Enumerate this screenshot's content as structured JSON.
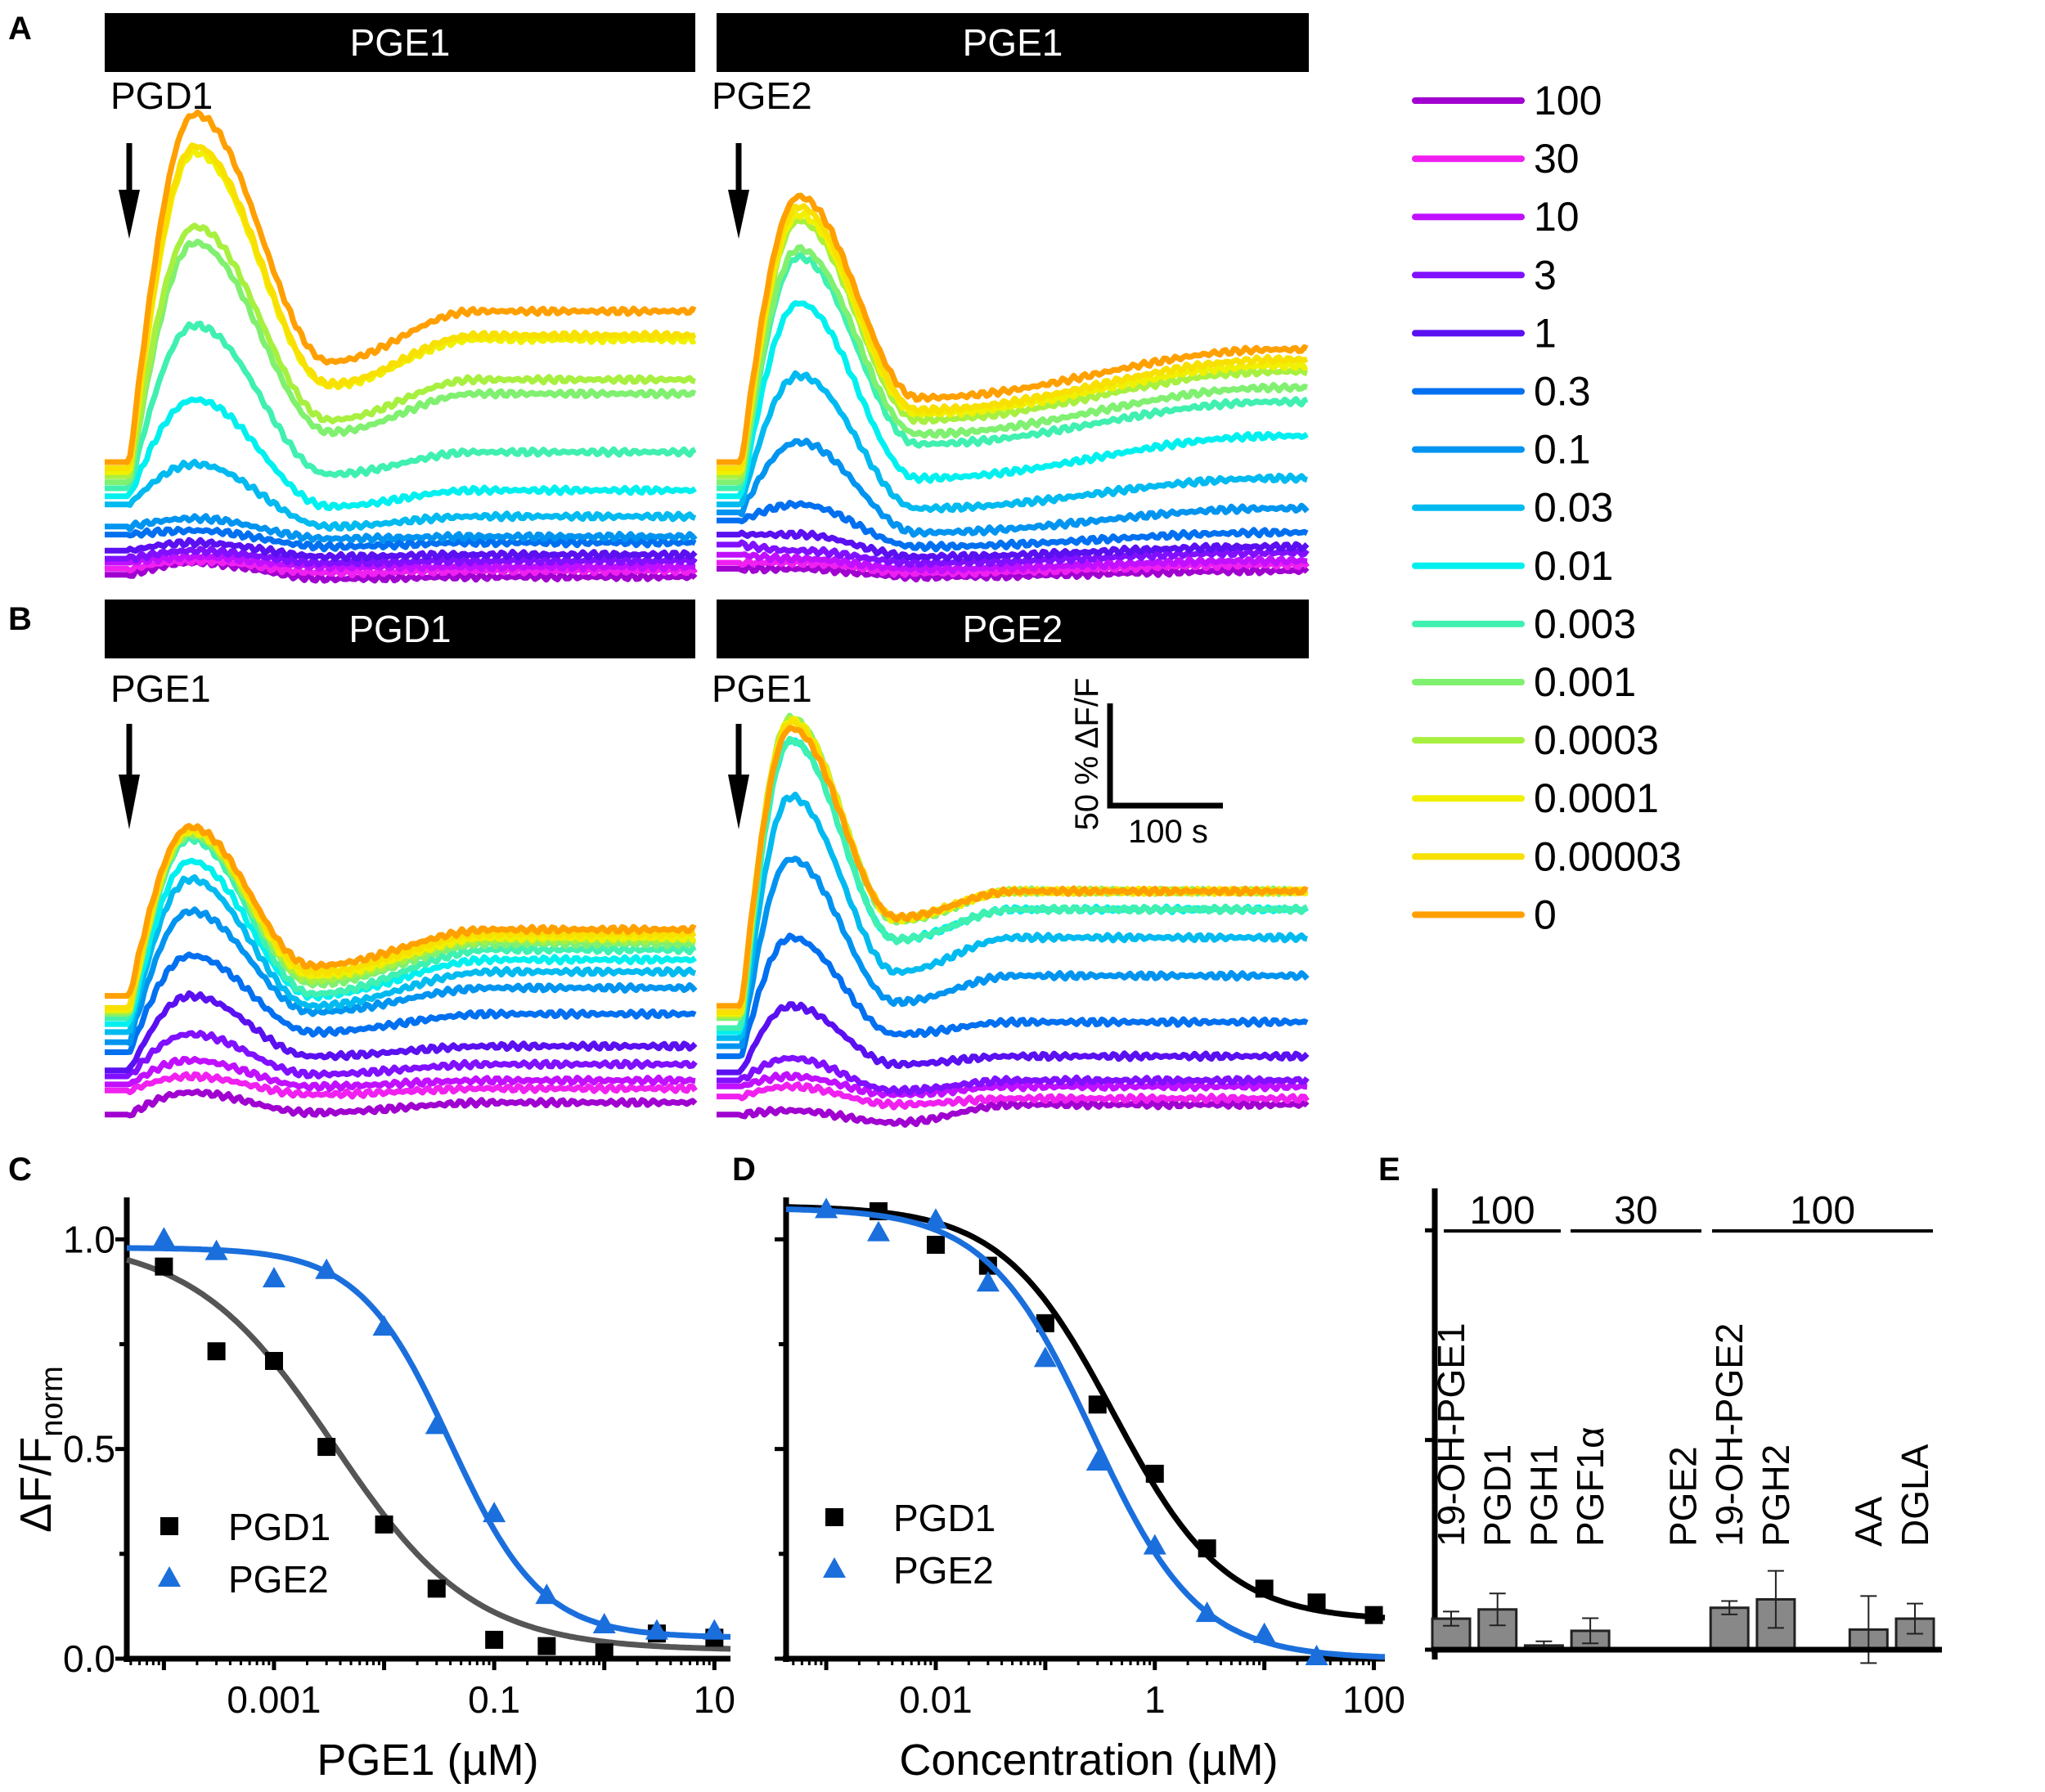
{
  "panel_labels": [
    "A",
    "B",
    "C",
    "D",
    "E"
  ],
  "traces": {
    "time_unit": "s",
    "value_unit": "% ΔF/F",
    "concentrations": [
      "100",
      "30",
      "10",
      "3",
      "1",
      "0.3",
      "0.1",
      "0.03",
      "0.01",
      "0.003",
      "0.001",
      "0.0003",
      "0.0001",
      "0.00003",
      "0"
    ],
    "colors": [
      "#a000d0",
      "#f020f0",
      "#c010ff",
      "#8010ff",
      "#5a10f0",
      "#0070f0",
      "#0094f0",
      "#00baf0",
      "#00f0f0",
      "#40f0b0",
      "#80f070",
      "#a8f040",
      "#f0f000",
      "#f8e000",
      "#ffa000"
    ],
    "panels": [
      {
        "bar_label": "PGE1",
        "agonist_label": "PGD1",
        "base": [
          7,
          10,
          13,
          15,
          19,
          27,
          31,
          42,
          46,
          50,
          53,
          56,
          58,
          60,
          63
        ],
        "peak": [
          13,
          14,
          16,
          19,
          23,
          29,
          35,
          62,
          94,
          131,
          172,
          180,
          217,
          220,
          236
        ],
        "trough": [
          5,
          8,
          11,
          13,
          16,
          21,
          25,
          31,
          41,
          57,
          78,
          84,
          101,
          102,
          113
        ],
        "plateau": [
          6,
          9,
          11,
          14,
          17,
          23,
          26,
          36,
          49,
          68,
          97,
          104,
          124,
          126,
          138
        ]
      },
      {
        "bar_label": "PGE1",
        "agonist_label": "PGE2",
        "base": [
          10,
          13,
          17,
          22,
          27,
          34,
          38,
          42,
          46,
          50,
          53,
          56,
          58,
          60,
          63
        ],
        "peak": [
          10,
          13,
          15,
          19,
          27,
          42,
          73,
          106,
          142,
          165,
          169,
          183,
          186,
          190,
          195
        ],
        "trough": [
          6,
          8,
          10,
          13,
          16,
          21,
          28,
          40,
          55,
          72,
          77,
          84,
          87,
          89,
          95
        ],
        "plateau": [
          9,
          12,
          14,
          18,
          21,
          28,
          40,
          55,
          76,
          93,
          100,
          108,
          111,
          114,
          119
        ]
      },
      {
        "bar_label": "PGD1",
        "agonist_label": "PGE1",
        "base": [
          7,
          19,
          22,
          26,
          29,
          38,
          43,
          48,
          52,
          55,
          57,
          58,
          59,
          60,
          66
        ],
        "peak": [
          18,
          26,
          34,
          47,
          66,
          86,
          108,
          124,
          133,
          144,
          146,
          147,
          148,
          149,
          150
        ],
        "trough": [
          8,
          17,
          21,
          27,
          36,
          48,
          58,
          61,
          66,
          67,
          72,
          74,
          76,
          78,
          81
        ],
        "plateau": [
          13,
          20,
          24,
          32,
          41,
          57,
          70,
          78,
          84,
          89,
          92,
          94,
          95,
          97,
          99
        ]
      },
      {
        "bar_label": "PGE2",
        "agonist_label": "PGE1",
        "base": [
          7,
          16,
          21,
          24,
          28,
          36,
          41,
          45,
          48,
          50,
          55,
          56,
          57,
          58,
          61
        ],
        "peak": [
          9,
          21,
          26,
          35,
          61,
          95,
          134,
          165,
          193,
          193,
          204,
          204,
          203,
          202,
          199
        ],
        "trough": [
          3,
          12,
          17,
          19,
          32,
          47,
          63,
          78,
          94,
          94,
          103,
          104,
          104,
          105,
          105
        ],
        "plateau": [
          12,
          15,
          21,
          24,
          36,
          53,
          76,
          95,
          109,
          109,
          118,
          118,
          118,
          118,
          118
        ]
      }
    ]
  },
  "scale_bar": {
    "vertical_label": "50 % ΔF/F",
    "horizontal_label": "100 s",
    "vertical_value": 50,
    "horizontal_value": 100
  },
  "chart_data": [
    {
      "type": "scatter",
      "xlabel": "PGE1 (µM)",
      "ylabel": "ΔF/F",
      "ylabel_sub": "norm",
      "xscale": "log",
      "xlim": [
        4.6e-05,
        14
      ],
      "ylim": [
        0,
        1.1
      ],
      "xticklabels": [
        "0.001",
        "0.1",
        "10"
      ],
      "yticklabels": [
        "0.0",
        "0.5",
        "1.0"
      ],
      "legend": "lower-left",
      "series": [
        {
          "name": "PGD1",
          "marker": "square",
          "color": "#000000",
          "curve_color": "#555555",
          "x": [
            0.0001,
            0.0003,
            0.001,
            0.003,
            0.01,
            0.03,
            0.1,
            0.3,
            1,
            3,
            10
          ],
          "values": [
            0.935,
            0.733,
            0.71,
            0.505,
            0.32,
            0.167,
            0.045,
            0.03,
            0.015,
            0.06,
            0.05
          ],
          "fit": {
            "top": 1.0,
            "bottom": 0.02,
            "ic50": 0.0035,
            "hill": 0.68
          }
        },
        {
          "name": "PGE2",
          "marker": "triangle",
          "color": "#1a6fdc",
          "curve_color": "#1a6fdc",
          "x": [
            0.0001,
            0.0003,
            0.001,
            0.003,
            0.01,
            0.03,
            0.1,
            0.3,
            1,
            3,
            10
          ],
          "values": [
            1.0,
            0.97,
            0.905,
            0.925,
            0.79,
            0.555,
            0.345,
            0.15,
            0.08,
            0.065,
            0.065
          ],
          "fit": {
            "top": 0.98,
            "bottom": 0.05,
            "ic50": 0.04,
            "hill": 1.05
          }
        }
      ]
    },
    {
      "type": "scatter",
      "xlabel": "Concentration (µM)",
      "xscale": "log",
      "xlim": [
        0.00043,
        126
      ],
      "ylim": [
        0,
        1.1
      ],
      "xticklabels": [
        "0.01",
        "1",
        "100"
      ],
      "legend": "lower-left",
      "series": [
        {
          "name": "PGD1",
          "marker": "square",
          "color": "#000000",
          "curve_color": "#000000",
          "x": [
            0.003,
            0.01,
            0.03,
            0.1,
            0.3,
            1,
            3,
            10,
            30,
            100
          ],
          "values": [
            1.067,
            0.987,
            0.937,
            0.8,
            0.606,
            0.441,
            0.263,
            0.167,
            0.134,
            0.104
          ],
          "fit": {
            "top": 1.08,
            "bottom": 0.09,
            "ic50": 0.42,
            "hill": 0.85
          }
        },
        {
          "name": "PGE2",
          "marker": "triangle",
          "color": "#1a6fdc",
          "curve_color": "#1a6fdc",
          "x": [
            0.001,
            0.003,
            0.01,
            0.03,
            0.1,
            0.3,
            1,
            3,
            10,
            30
          ],
          "values": [
            1.07,
            1.015,
            1.045,
            0.895,
            0.715,
            0.468,
            0.268,
            0.107,
            0.057,
            0.004
          ],
          "fit": {
            "top": 1.075,
            "bottom": 0.0,
            "ic50": 0.27,
            "hill": 0.9
          }
        }
      ]
    },
    {
      "type": "bar",
      "ylim": [
        0,
        1.1
      ],
      "categories": [
        "19-OH-PGE1",
        "PGD1",
        "PGH1",
        "PGF1α",
        "PGE2",
        "19-OH-PGE2",
        "PGH2",
        "AA",
        "DGLA"
      ],
      "values": [
        0.074,
        0.096,
        0.01,
        0.045,
        0.0,
        0.1,
        0.12,
        0.048,
        0.074
      ],
      "errors": [
        0.017,
        0.038,
        0.01,
        0.03,
        0.0,
        0.016,
        0.068,
        0.08,
        0.036
      ],
      "bar_color": "#888888",
      "groups": [
        {
          "label": "100",
          "categories": [
            "19-OH-PGE1",
            "PGD1",
            "PGH1"
          ]
        },
        {
          "label": "30",
          "categories": [
            "PGF1α",
            "PGE2"
          ]
        },
        {
          "label": "100",
          "categories": [
            "19-OH-PGE2",
            "PGH2",
            "AA",
            "DGLA"
          ]
        }
      ]
    }
  ]
}
